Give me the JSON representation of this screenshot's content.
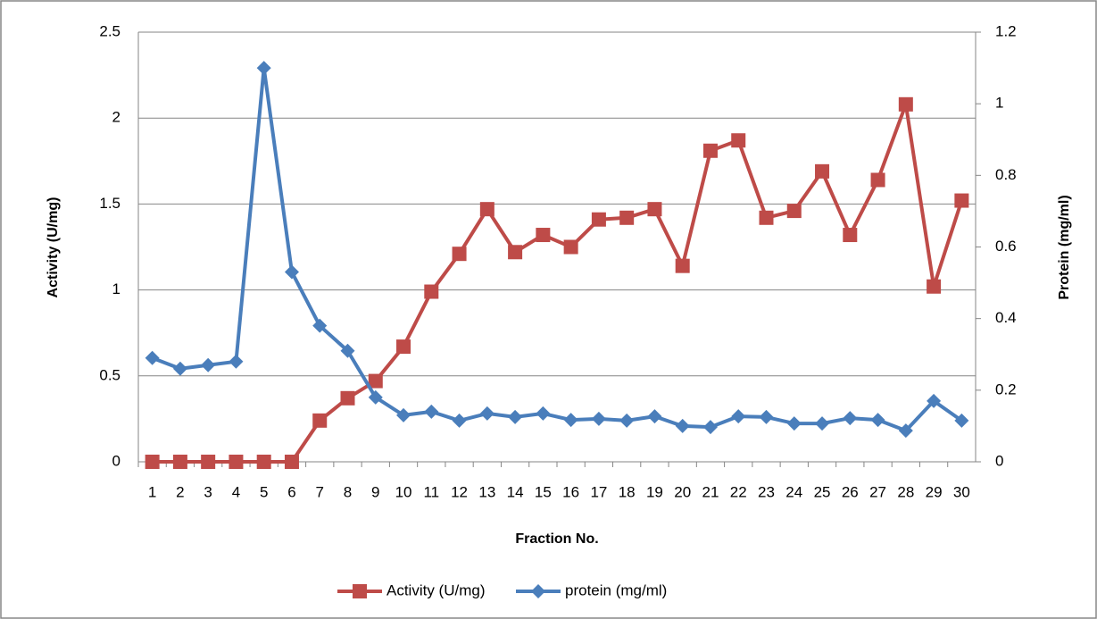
{
  "chart_data": {
    "type": "line",
    "x_label": "Fraction No.",
    "y_label": "Activity (U/mg)",
    "y2_label": "Protein (mg/ml)",
    "categories": [
      "1",
      "2",
      "3",
      "4",
      "5",
      "6",
      "7",
      "8",
      "9",
      "10",
      "11",
      "12",
      "13",
      "14",
      "15",
      "16",
      "17",
      "18",
      "19",
      "20",
      "21",
      "22",
      "23",
      "24",
      "25",
      "26",
      "27",
      "28",
      "29",
      "30"
    ],
    "series": [
      {
        "name": "Activity (U/mg)",
        "color": "#be4b48",
        "marker": "square",
        "values": [
          0,
          0,
          0,
          0,
          0,
          0,
          0.24,
          0.37,
          0.47,
          0.67,
          0.99,
          1.21,
          1.47,
          1.22,
          1.32,
          1.25,
          1.41,
          1.42,
          1.47,
          1.14,
          1.81,
          1.87,
          1.42,
          1.46,
          1.69,
          1.32,
          1.64,
          2.08,
          1.02,
          1.52
        ]
      },
      {
        "name": "protein (mg/ml)",
        "color": "#4a7ebb",
        "marker": "diamond",
        "axis": "y2",
        "values": [
          0.29,
          0.26,
          0.27,
          0.28,
          1.1,
          0.53,
          0.38,
          0.31,
          0.18,
          0.13,
          0.14,
          0.115,
          0.135,
          0.125,
          0.135,
          0.117,
          0.12,
          0.115,
          0.127,
          0.1,
          0.097,
          0.127,
          0.125,
          0.107,
          0.107,
          0.122,
          0.117,
          0.087,
          0.17,
          0.115
        ]
      }
    ],
    "ylim": [
      0,
      2.5
    ],
    "yticks": [
      0,
      0.5,
      1,
      1.5,
      2,
      2.5
    ],
    "y2lim": [
      0,
      1.2
    ],
    "y2ticks": [
      0,
      0.2,
      0.4,
      0.6,
      0.8,
      1,
      1.2
    ],
    "grid": true,
    "legend": "bottom"
  }
}
